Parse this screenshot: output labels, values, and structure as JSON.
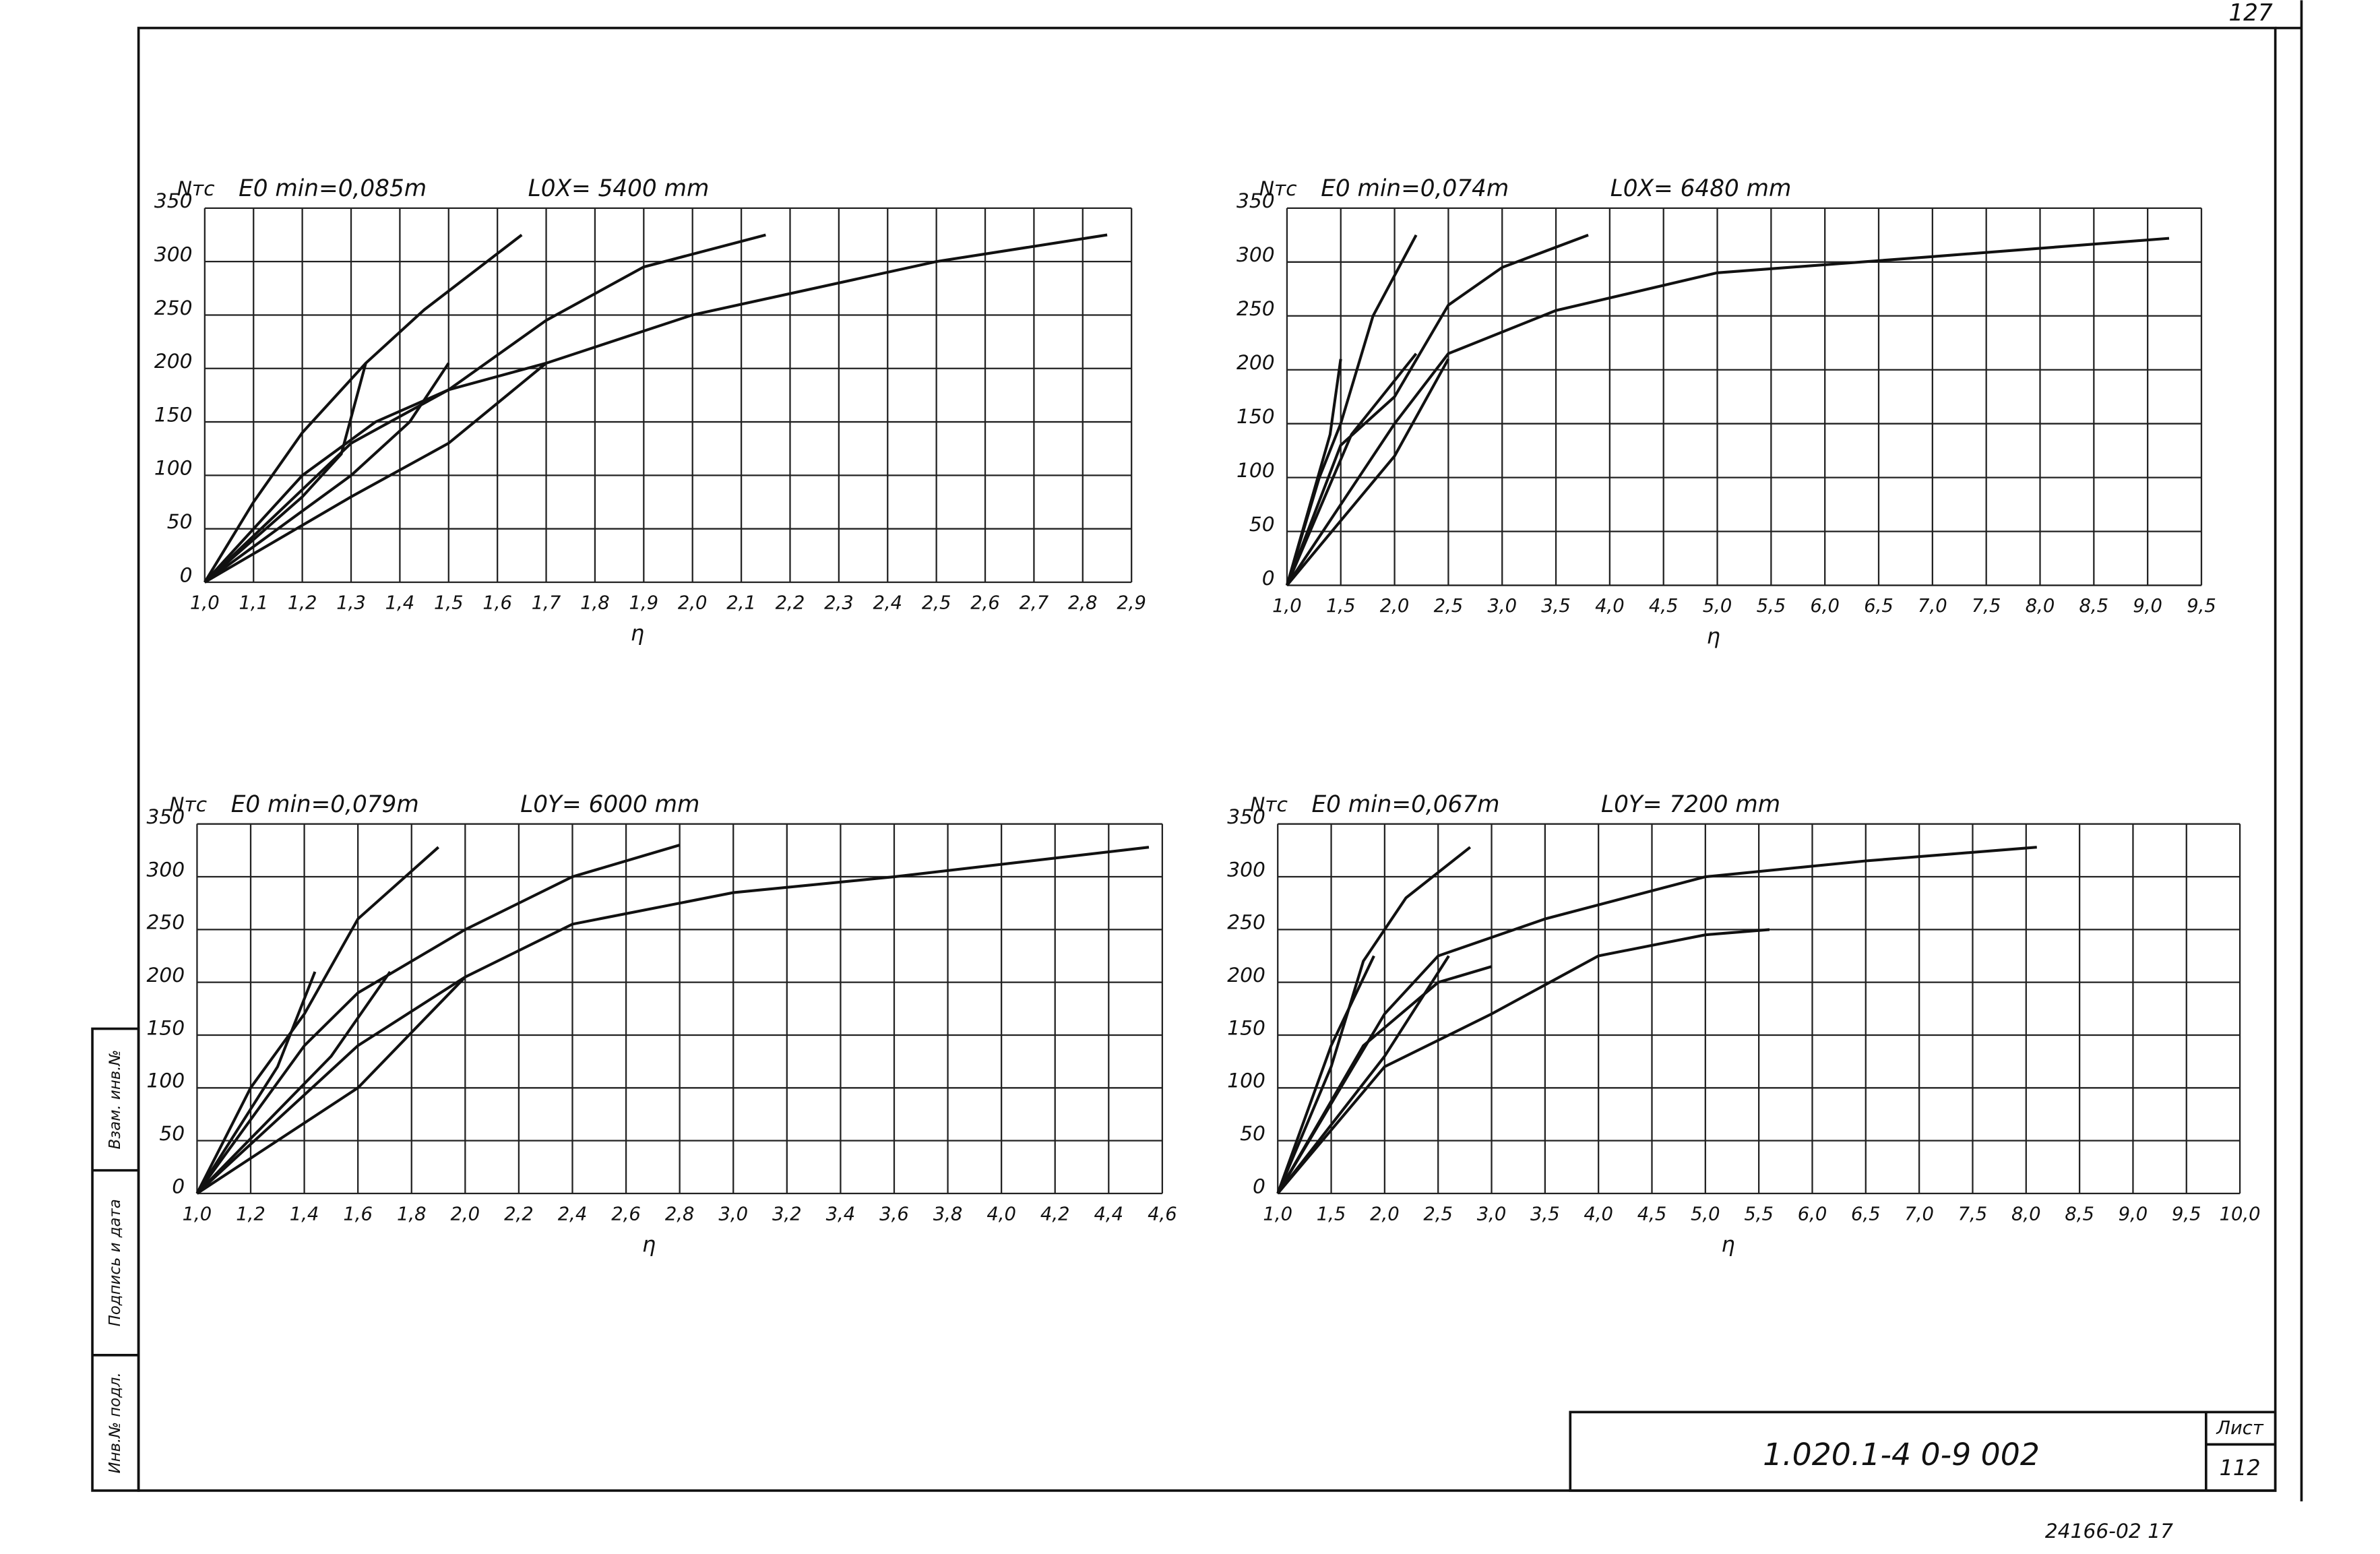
{
  "chart_data": [
    {
      "type": "line",
      "title": "E0 min=0,085m",
      "subtitle": "L0X= 5400 mm",
      "ylabel": "Nтс",
      "xlabel": "η",
      "grid": true,
      "xlim": [
        1.0,
        2.9
      ],
      "ylim": [
        0,
        350
      ],
      "yticks": [
        0,
        50,
        100,
        150,
        200,
        250,
        300,
        350
      ],
      "xticks": [
        {
          "value": 1.0,
          "label": "1,0"
        },
        {
          "value": 1.1,
          "label": "1,1"
        },
        {
          "value": 1.2,
          "label": "1,2"
        },
        {
          "value": 1.3,
          "label": "1,3"
        },
        {
          "value": 1.4,
          "label": "1,4"
        },
        {
          "value": 1.5,
          "label": "1,5"
        },
        {
          "value": 1.6,
          "label": "1,6"
        },
        {
          "value": 1.7,
          "label": "1,7"
        },
        {
          "value": 1.8,
          "label": "1,8"
        },
        {
          "value": 1.9,
          "label": "1,9"
        },
        {
          "value": 2.0,
          "label": "2,0"
        },
        {
          "value": 2.1,
          "label": "2,1"
        },
        {
          "value": 2.2,
          "label": "2,2"
        },
        {
          "value": 2.3,
          "label": "2,3"
        },
        {
          "value": 2.4,
          "label": "2,4"
        },
        {
          "value": 2.5,
          "label": "2,5"
        },
        {
          "value": 2.6,
          "label": "2,6"
        },
        {
          "value": 2.7,
          "label": "2,7"
        },
        {
          "value": 2.8,
          "label": "2,8"
        },
        {
          "value": 2.9,
          "label": "2,9"
        }
      ],
      "series": [
        {
          "color": "#111",
          "x": [
            1.0,
            1.1,
            1.2,
            1.33,
            1.45,
            1.65
          ],
          "values": [
            0,
            75,
            140,
            205,
            255,
            325
          ]
        },
        {
          "color": "#111",
          "x": [
            1.0,
            1.2,
            1.28,
            1.33
          ],
          "values": [
            0,
            80,
            120,
            205
          ]
        },
        {
          "color": "#111",
          "x": [
            1.0,
            1.2,
            1.35,
            1.5,
            1.7,
            1.9,
            2.15
          ],
          "values": [
            0,
            100,
            150,
            180,
            245,
            295,
            325
          ]
        },
        {
          "color": "#111",
          "x": [
            1.0,
            1.3,
            1.42,
            1.5
          ],
          "values": [
            0,
            100,
            150,
            205
          ]
        },
        {
          "color": "#111",
          "x": [
            1.0,
            1.3,
            1.5,
            1.7,
            2.0,
            2.5,
            2.85
          ],
          "values": [
            0,
            130,
            180,
            205,
            250,
            300,
            325
          ]
        },
        {
          "color": "#111",
          "x": [
            1.0,
            1.3,
            1.5,
            1.7
          ],
          "values": [
            0,
            80,
            130,
            205
          ]
        }
      ]
    },
    {
      "type": "line",
      "title": "E0 min=0,074m",
      "subtitle": "L0X= 6480 mm",
      "ylabel": "Nтс",
      "xlabel": "η",
      "grid": true,
      "xlim": [
        1.0,
        9.5
      ],
      "ylim": [
        0,
        350
      ],
      "yticks": [
        0,
        50,
        100,
        150,
        200,
        250,
        300,
        350
      ],
      "xticks": [
        {
          "value": 1.0,
          "label": "1,0"
        },
        {
          "value": 1.5,
          "label": "1,5"
        },
        {
          "value": 2.0,
          "label": "2,0"
        },
        {
          "value": 2.5,
          "label": "2,5"
        },
        {
          "value": 3.0,
          "label": "3,0"
        },
        {
          "value": 3.5,
          "label": "3,5"
        },
        {
          "value": 4.0,
          "label": "4,0"
        },
        {
          "value": 4.5,
          "label": "4,5"
        },
        {
          "value": 5.0,
          "label": "5,0"
        },
        {
          "value": 5.5,
          "label": "5,5"
        },
        {
          "value": 6.0,
          "label": "6,0"
        },
        {
          "value": 6.5,
          "label": "6,5"
        },
        {
          "value": 7.0,
          "label": "7,0"
        },
        {
          "value": 7.5,
          "label": "7,5"
        },
        {
          "value": 8.0,
          "label": "8,0"
        },
        {
          "value": 8.5,
          "label": "8,5"
        },
        {
          "value": 9.0,
          "label": "9,0"
        },
        {
          "value": 9.5,
          "label": "9,5"
        }
      ],
      "series": [
        {
          "color": "#111",
          "x": [
            1.0,
            1.3,
            1.5,
            1.8,
            2.2
          ],
          "values": [
            0,
            100,
            150,
            250,
            325
          ]
        },
        {
          "color": "#111",
          "x": [
            1.0,
            1.4,
            1.5
          ],
          "values": [
            0,
            140,
            210
          ]
        },
        {
          "color": "#111",
          "x": [
            1.0,
            1.5,
            2.0,
            2.5,
            3.0,
            3.8
          ],
          "values": [
            0,
            130,
            175,
            260,
            295,
            325
          ]
        },
        {
          "color": "#111",
          "x": [
            1.0,
            1.6,
            2.2
          ],
          "values": [
            0,
            140,
            215
          ]
        },
        {
          "color": "#111",
          "x": [
            1.0,
            2.0,
            2.5,
            3.5,
            5.0,
            7.0,
            9.2
          ],
          "values": [
            0,
            150,
            215,
            255,
            290,
            305,
            322
          ]
        },
        {
          "color": "#111",
          "x": [
            1.0,
            2.0,
            2.5
          ],
          "values": [
            0,
            120,
            210
          ]
        }
      ]
    },
    {
      "type": "line",
      "title": "E0 min=0,079m",
      "subtitle": "L0Y= 6000 mm",
      "ylabel": "Nтс",
      "xlabel": "η",
      "grid": true,
      "xlim": [
        1.0,
        4.6
      ],
      "ylim": [
        0,
        350
      ],
      "yticks": [
        0,
        50,
        100,
        150,
        200,
        250,
        300,
        350
      ],
      "xticks": [
        {
          "value": 1.0,
          "label": "1,0"
        },
        {
          "value": 1.2,
          "label": "1,2"
        },
        {
          "value": 1.4,
          "label": "1,4"
        },
        {
          "value": 1.6,
          "label": "1,6"
        },
        {
          "value": 1.8,
          "label": "1,8"
        },
        {
          "value": 2.0,
          "label": "2,0"
        },
        {
          "value": 2.2,
          "label": "2,2"
        },
        {
          "value": 2.4,
          "label": "2,4"
        },
        {
          "value": 2.6,
          "label": "2,6"
        },
        {
          "value": 2.8,
          "label": "2,8"
        },
        {
          "value": 3.0,
          "label": "3,0"
        },
        {
          "value": 3.2,
          "label": "3,2"
        },
        {
          "value": 3.4,
          "label": "3,4"
        },
        {
          "value": 3.6,
          "label": "3,6"
        },
        {
          "value": 3.8,
          "label": "3,8"
        },
        {
          "value": 4.0,
          "label": "4,0"
        },
        {
          "value": 4.2,
          "label": "4,2"
        },
        {
          "value": 4.4,
          "label": "4,4"
        },
        {
          "value": 4.6,
          "label": "4,6"
        }
      ],
      "series": [
        {
          "color": "#111",
          "x": [
            1.0,
            1.2,
            1.4,
            1.6,
            1.9
          ],
          "values": [
            0,
            100,
            170,
            260,
            328
          ]
        },
        {
          "color": "#111",
          "x": [
            1.0,
            1.3,
            1.44
          ],
          "values": [
            0,
            120,
            210
          ]
        },
        {
          "color": "#111",
          "x": [
            1.0,
            1.4,
            1.6,
            2.0,
            2.4,
            2.8
          ],
          "values": [
            0,
            140,
            190,
            250,
            300,
            330
          ]
        },
        {
          "color": "#111",
          "x": [
            1.0,
            1.5,
            1.72
          ],
          "values": [
            0,
            130,
            210
          ]
        },
        {
          "color": "#111",
          "x": [
            1.0,
            1.6,
            2.0,
            2.4,
            3.0,
            3.6,
            4.55
          ],
          "values": [
            0,
            140,
            205,
            255,
            285,
            300,
            328
          ]
        },
        {
          "color": "#111",
          "x": [
            1.0,
            1.6,
            2.0
          ],
          "values": [
            0,
            100,
            205
          ]
        }
      ]
    },
    {
      "type": "line",
      "title": "E0 min=0,067m",
      "subtitle": "L0Y= 7200 mm",
      "ylabel": "Nтс",
      "xlabel": "η",
      "grid": true,
      "xlim": [
        1.0,
        10.0
      ],
      "ylim": [
        0,
        350
      ],
      "yticks": [
        0,
        50,
        100,
        150,
        200,
        250,
        300,
        350
      ],
      "xticks": [
        {
          "value": 1.0,
          "label": "1,0"
        },
        {
          "value": 1.5,
          "label": "1,5"
        },
        {
          "value": 2.0,
          "label": "2,0"
        },
        {
          "value": 2.5,
          "label": "2,5"
        },
        {
          "value": 3.0,
          "label": "3,0"
        },
        {
          "value": 3.5,
          "label": "3,5"
        },
        {
          "value": 4.0,
          "label": "4,0"
        },
        {
          "value": 4.5,
          "label": "4,5"
        },
        {
          "value": 5.0,
          "label": "5,0"
        },
        {
          "value": 5.5,
          "label": "5,5"
        },
        {
          "value": 6.0,
          "label": "6,0"
        },
        {
          "value": 6.5,
          "label": "6,5"
        },
        {
          "value": 7.0,
          "label": "7,0"
        },
        {
          "value": 7.5,
          "label": "7,5"
        },
        {
          "value": 8.0,
          "label": "8,0"
        },
        {
          "value": 8.5,
          "label": "8,5"
        },
        {
          "value": 9.0,
          "label": "9,0"
        },
        {
          "value": 9.5,
          "label": "9,5"
        },
        {
          "value": 10.0,
          "label": "10,0"
        }
      ],
      "series": [
        {
          "color": "#111",
          "x": [
            1.0,
            1.5,
            1.8,
            2.2,
            2.8
          ],
          "values": [
            0,
            120,
            220,
            280,
            328
          ]
        },
        {
          "color": "#111",
          "x": [
            1.0,
            1.5,
            1.9
          ],
          "values": [
            0,
            140,
            225
          ]
        },
        {
          "color": "#111",
          "x": [
            1.0,
            2.0,
            2.5,
            3.5,
            5.0,
            6.5,
            8.1
          ],
          "values": [
            0,
            170,
            225,
            260,
            300,
            315,
            328
          ]
        },
        {
          "color": "#111",
          "x": [
            1.0,
            2.0,
            2.6
          ],
          "values": [
            0,
            130,
            225
          ]
        },
        {
          "color": "#111",
          "x": [
            1.0,
            2.0,
            3.0,
            4.0,
            5.0,
            5.6
          ],
          "values": [
            0,
            120,
            170,
            225,
            245,
            250
          ]
        },
        {
          "color": "#111",
          "x": [
            1.0,
            1.8,
            2.5,
            3.0
          ],
          "values": [
            0,
            140,
            200,
            215
          ]
        }
      ]
    }
  ],
  "sheet": {
    "page_number": "127",
    "code": "1.020.1-4   0-9   002",
    "sheet_label": "Лист",
    "sheet_number": "112",
    "archive": "24166-02  17",
    "stamp": [
      "Инв.№ подл.",
      "Подпись и дата",
      "Взам. инв.№"
    ]
  }
}
